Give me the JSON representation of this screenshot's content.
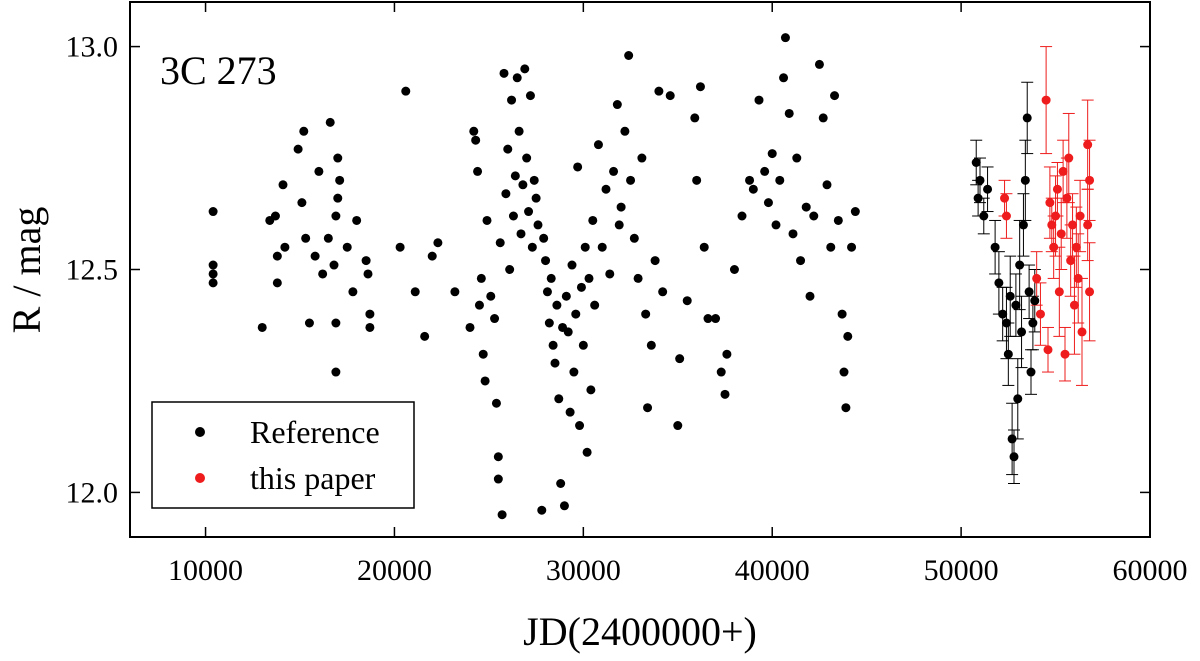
{
  "chart_data": {
    "type": "scatter",
    "title": "3C 273",
    "x_label": "JD(2400000+)",
    "y_label": "R / mag",
    "xlim": [
      6000,
      60000
    ],
    "ylim": [
      11.9,
      13.1
    ],
    "xticks": [
      10000,
      20000,
      30000,
      40000,
      50000,
      60000
    ],
    "yticks": [
      {
        "value": 12,
        "label": "12.0"
      },
      12.5,
      {
        "value": 13,
        "label": "13.0"
      }
    ],
    "legend": "lower left",
    "series": [
      {
        "name": "Reference",
        "color": "#000000",
        "x": [
          10400,
          10400,
          10400,
          10400,
          13000,
          13400,
          13700,
          13800,
          13800,
          14100,
          14200,
          14900,
          15100,
          15200,
          15300,
          15500,
          15800,
          16000,
          16200,
          16500,
          16600,
          16800,
          16900,
          16900,
          16900,
          17000,
          17000,
          17100,
          17500,
          17800,
          18000,
          18500,
          18600,
          18700,
          18700,
          20300,
          20600,
          21100,
          21600,
          22000,
          22300,
          23200,
          24000,
          24200,
          24300,
          24400,
          24500,
          24600,
          24700,
          24800,
          24900,
          25100,
          25300,
          25400,
          25500,
          25500,
          25600,
          25700,
          25800,
          25900,
          26000,
          26100,
          26200,
          26300,
          26400,
          26500,
          26600,
          26700,
          26800,
          26900,
          27000,
          27100,
          27200,
          27300,
          27400,
          27500,
          27600,
          27800,
          27900,
          28000,
          28100,
          28200,
          28300,
          28400,
          28500,
          28600,
          28700,
          28800,
          28900,
          29000,
          29100,
          29200,
          29300,
          29400,
          29500,
          29600,
          29700,
          29800,
          29900,
          30000,
          30100,
          30200,
          30300,
          30400,
          30500,
          30600,
          30800,
          31000,
          31200,
          31400,
          31600,
          31800,
          31900,
          32000,
          32200,
          32400,
          32500,
          32700,
          32900,
          33100,
          33300,
          33400,
          33600,
          33800,
          34000,
          34200,
          34600,
          35000,
          35100,
          35500,
          35900,
          36000,
          36200,
          36400,
          36600,
          37000,
          37300,
          37500,
          37600,
          38000,
          38400,
          38800,
          39000,
          39300,
          39600,
          39800,
          40000,
          40200,
          40400,
          40600,
          40700,
          40900,
          41100,
          41300,
          41500,
          41800,
          42000,
          42200,
          42500,
          42700,
          42900,
          43100,
          43300,
          43500,
          43700,
          43800,
          43900,
          44000,
          44200,
          44400,
          50800,
          50900,
          51000,
          51200,
          51400,
          51800,
          52000,
          52200,
          52400,
          52500,
          52600,
          52700,
          52800,
          52900,
          53000,
          53100,
          53200,
          53300,
          53400,
          53500,
          53600,
          53700,
          53800,
          53900
        ],
        "values": [
          12.63,
          12.51,
          12.49,
          12.47,
          12.37,
          12.61,
          12.62,
          12.53,
          12.47,
          12.69,
          12.55,
          12.77,
          12.65,
          12.81,
          12.57,
          12.38,
          12.53,
          12.72,
          12.49,
          12.57,
          12.83,
          12.51,
          12.38,
          12.27,
          12.62,
          12.66,
          12.75,
          12.7,
          12.55,
          12.45,
          12.61,
          12.52,
          12.49,
          12.4,
          12.37,
          12.55,
          12.9,
          12.45,
          12.35,
          12.53,
          12.56,
          12.45,
          12.37,
          12.81,
          12.79,
          12.72,
          12.42,
          12.48,
          12.31,
          12.25,
          12.61,
          12.44,
          12.39,
          12.2,
          12.08,
          12.03,
          12.56,
          11.95,
          12.94,
          12.67,
          12.77,
          12.5,
          12.88,
          12.62,
          12.71,
          12.93,
          12.81,
          12.58,
          12.69,
          12.95,
          12.75,
          12.63,
          12.89,
          12.55,
          12.7,
          12.66,
          12.6,
          11.96,
          12.57,
          12.52,
          12.45,
          12.38,
          12.48,
          12.33,
          12.29,
          12.42,
          12.21,
          12.02,
          12.37,
          11.97,
          12.44,
          12.36,
          12.18,
          12.51,
          12.27,
          12.4,
          12.73,
          12.15,
          12.46,
          12.33,
          12.55,
          12.09,
          12.48,
          12.23,
          12.61,
          12.42,
          12.78,
          12.55,
          12.68,
          12.49,
          12.72,
          12.87,
          12.6,
          12.64,
          12.81,
          12.98,
          12.7,
          12.57,
          12.48,
          12.75,
          12.4,
          12.19,
          12.33,
          12.52,
          12.9,
          12.45,
          12.89,
          12.15,
          12.3,
          12.43,
          12.84,
          12.7,
          12.91,
          12.55,
          12.39,
          12.39,
          12.27,
          12.22,
          12.31,
          12.5,
          12.62,
          12.7,
          12.68,
          12.88,
          12.72,
          12.65,
          12.76,
          12.6,
          12.7,
          12.93,
          13.02,
          12.85,
          12.58,
          12.75,
          12.52,
          12.64,
          12.44,
          12.62,
          12.96,
          12.84,
          12.69,
          12.55,
          12.89,
          12.61,
          12.4,
          12.27,
          12.19,
          12.35,
          12.55,
          12.63,
          12.74,
          12.66,
          12.7,
          12.62,
          12.68,
          12.55,
          12.47,
          12.4,
          12.38,
          12.31,
          12.44,
          12.12,
          12.08,
          12.42,
          12.21,
          12.51,
          12.36,
          12.6,
          12.7,
          12.84,
          12.45,
          12.27,
          12.38,
          12.43
        ],
        "errors": [
          null,
          null,
          null,
          null,
          null,
          null,
          null,
          null,
          null,
          null,
          null,
          null,
          null,
          null,
          null,
          null,
          null,
          null,
          null,
          null,
          null,
          null,
          null,
          null,
          null,
          null,
          null,
          null,
          null,
          null,
          null,
          null,
          null,
          null,
          null,
          null,
          null,
          null,
          null,
          null,
          null,
          null,
          null,
          null,
          null,
          null,
          null,
          null,
          null,
          null,
          null,
          null,
          null,
          null,
          null,
          null,
          null,
          null,
          null,
          null,
          null,
          null,
          null,
          null,
          null,
          null,
          null,
          null,
          null,
          null,
          null,
          null,
          null,
          null,
          null,
          null,
          null,
          null,
          null,
          null,
          null,
          null,
          null,
          null,
          null,
          null,
          null,
          null,
          null,
          null,
          null,
          null,
          null,
          null,
          null,
          null,
          null,
          null,
          null,
          null,
          null,
          null,
          null,
          null,
          null,
          null,
          null,
          null,
          null,
          null,
          null,
          null,
          null,
          null,
          null,
          null,
          null,
          null,
          null,
          null,
          null,
          null,
          null,
          null,
          null,
          null,
          null,
          null,
          null,
          null,
          null,
          null,
          null,
          null,
          null,
          null,
          null,
          null,
          null,
          null,
          null,
          null,
          null,
          null,
          null,
          null,
          null,
          null,
          null,
          null,
          null,
          null,
          null,
          null,
          null,
          null,
          null,
          null,
          null,
          null,
          null,
          null,
          null,
          null,
          null,
          null,
          null,
          null,
          null,
          null,
          0.05,
          0.04,
          0.05,
          0.04,
          0.05,
          0.06,
          0.07,
          0.06,
          0.08,
          0.07,
          0.09,
          0.08,
          0.06,
          0.07,
          0.09,
          0.1,
          0.08,
          0.07,
          0.09,
          0.08,
          0.06,
          0.05,
          0.06,
          0.07
        ]
      },
      {
        "name": "this paper",
        "color": "#ee1c1c",
        "x": [
          52300,
          52400,
          54000,
          54200,
          54500,
          54600,
          54700,
          54800,
          54900,
          55000,
          55100,
          55200,
          55300,
          55400,
          55500,
          55600,
          55700,
          55800,
          55900,
          56000,
          56100,
          56200,
          56300,
          56400,
          56700,
          56700,
          56800,
          56800
        ],
        "values": [
          12.66,
          12.62,
          12.48,
          12.4,
          12.88,
          12.32,
          12.65,
          12.6,
          12.55,
          12.62,
          12.68,
          12.45,
          12.58,
          12.72,
          12.31,
          12.66,
          12.75,
          12.52,
          12.6,
          12.42,
          12.55,
          12.48,
          12.62,
          12.36,
          12.78,
          12.6,
          12.45,
          12.7
        ],
        "errors": [
          0.04,
          0.05,
          0.06,
          0.07,
          0.12,
          0.05,
          0.08,
          0.06,
          0.07,
          0.09,
          0.06,
          0.1,
          0.08,
          0.07,
          0.06,
          0.09,
          0.1,
          0.08,
          0.07,
          0.11,
          0.09,
          0.1,
          0.08,
          0.12,
          0.1,
          0.08,
          0.11,
          0.09
        ]
      }
    ]
  }
}
